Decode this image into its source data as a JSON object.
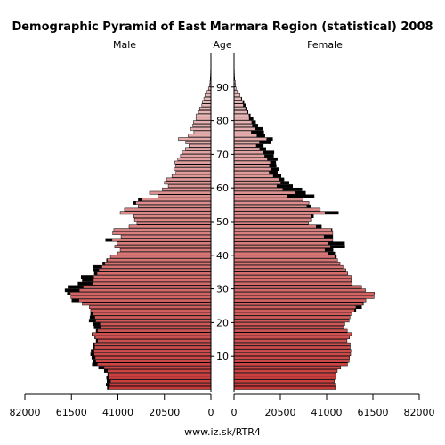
{
  "chart_data": {
    "type": "population-pyramid",
    "title": "Demographic Pyramid of East Marmara Region (statistical) 2008",
    "left_label": "Male",
    "center_label": "Age",
    "right_label": "Female",
    "x_ticks_left": [
      "82000",
      "61500",
      "41000",
      "20500",
      "0"
    ],
    "x_ticks_right": [
      "0",
      "20500",
      "41000",
      "61500",
      "82000"
    ],
    "x_max": 82000,
    "age_ticks": [
      "10",
      "20",
      "30",
      "40",
      "50",
      "60",
      "70",
      "80",
      "90"
    ],
    "age_min": 0,
    "age_max": 100,
    "source": "www.iz.sk/RTR4",
    "colors": {
      "young": "#c83a3a",
      "old": "#e6b8b8",
      "excess": "#000000",
      "outline": "#000000"
    },
    "ages": [
      0,
      1,
      2,
      3,
      4,
      5,
      6,
      7,
      8,
      9,
      10,
      11,
      12,
      13,
      14,
      15,
      16,
      17,
      18,
      19,
      20,
      21,
      22,
      23,
      24,
      25,
      26,
      27,
      28,
      29,
      30,
      31,
      32,
      33,
      34,
      35,
      36,
      37,
      38,
      39,
      40,
      41,
      42,
      43,
      44,
      45,
      46,
      47,
      48,
      49,
      50,
      51,
      52,
      53,
      54,
      55,
      56,
      57,
      58,
      59,
      60,
      61,
      62,
      63,
      64,
      65,
      66,
      67,
      68,
      69,
      70,
      71,
      72,
      73,
      74,
      75,
      76,
      77,
      78,
      79,
      80,
      81,
      82,
      83,
      84,
      85,
      86,
      87,
      88,
      89,
      90,
      91,
      92,
      93,
      94,
      95,
      96,
      97,
      98,
      99
    ],
    "male": [
      45700,
      46200,
      45800,
      46000,
      45500,
      47000,
      49500,
      52300,
      51800,
      52500,
      53000,
      52800,
      51900,
      52000,
      50600,
      51200,
      52400,
      50600,
      51500,
      52100,
      53700,
      53300,
      53000,
      53000,
      53600,
      56700,
      61300,
      61700,
      63300,
      64300,
      63000,
      58600,
      56700,
      57200,
      51400,
      51800,
      51700,
      47700,
      46000,
      44300,
      41200,
      40000,
      42400,
      41300,
      46400,
      39600,
      43300,
      42800,
      36100,
      32600,
      33700,
      34000,
      40000,
      38100,
      32000,
      34000,
      32000,
      23400,
      27100,
      21400,
      18800,
      20500,
      19600,
      17200,
      15400,
      16200,
      15500,
      15900,
      14600,
      13400,
      12600,
      11200,
      9700,
      11100,
      14300,
      10000,
      7500,
      9000,
      8000,
      7700,
      6600,
      6500,
      5500,
      5000,
      4000,
      3800,
      3100,
      2600,
      1700,
      1100,
      600,
      400,
      300,
      200,
      150,
      100,
      80,
      50,
      30,
      20
    ],
    "female": [
      44700,
      44500,
      44200,
      44800,
      44800,
      45500,
      47000,
      50000,
      50700,
      50900,
      51400,
      51500,
      51200,
      51200,
      49800,
      50900,
      51800,
      49900,
      48500,
      48800,
      50700,
      51100,
      52000,
      53700,
      56200,
      57000,
      58100,
      61700,
      61900,
      57900,
      56200,
      52100,
      51700,
      51600,
      50100,
      49300,
      48000,
      46700,
      45600,
      45100,
      44400,
      43600,
      48800,
      48700,
      43500,
      43500,
      43500,
      43200,
      38500,
      32800,
      34200,
      35000,
      46000,
      38000,
      34000,
      33000,
      30500,
      35300,
      31500,
      29900,
      25800,
      24200,
      22000,
      20700,
      19100,
      19500,
      18600,
      18400,
      19100,
      17400,
      17600,
      14000,
      12900,
      16200,
      17000,
      13600,
      13100,
      12500,
      10500,
      9500,
      8400,
      7200,
      6200,
      5600,
      5000,
      4400,
      3400,
      2600,
      1500,
      900,
      700,
      500,
      300,
      200,
      150,
      100,
      80,
      50,
      30,
      20
    ]
  }
}
